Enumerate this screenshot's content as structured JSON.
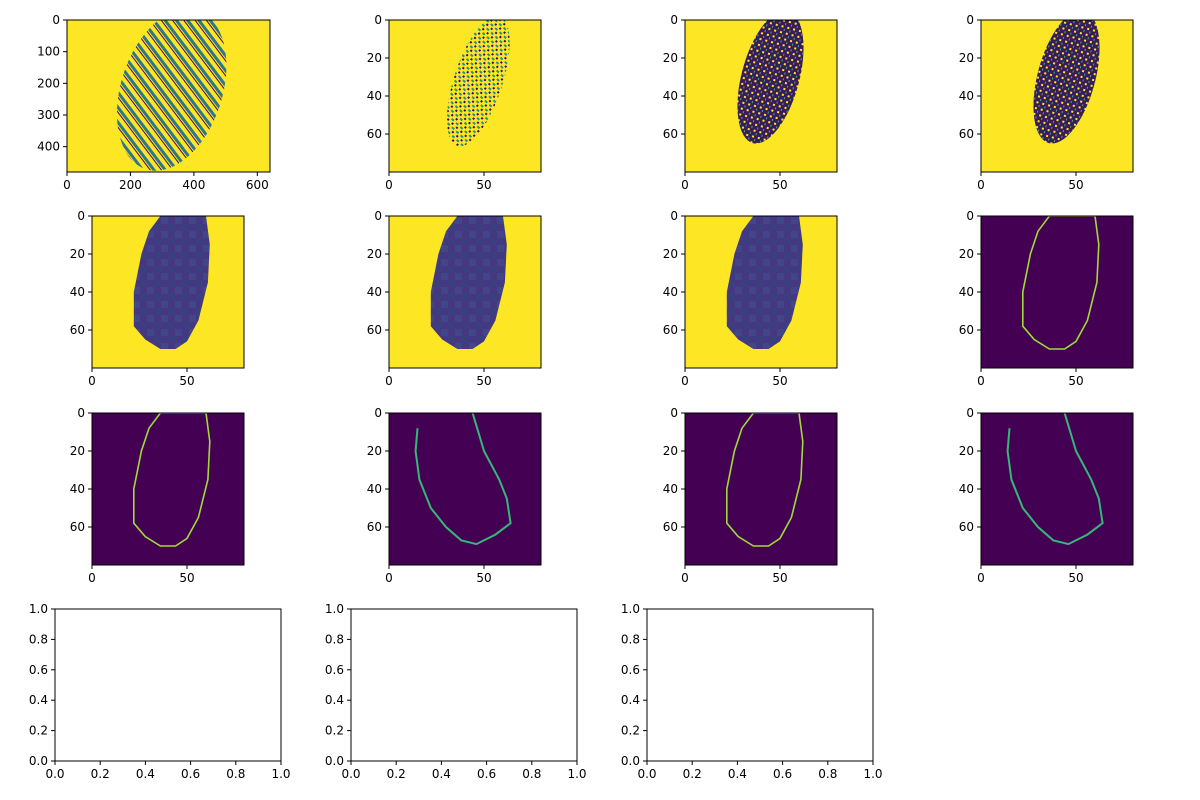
{
  "colors": {
    "yellow": "#fde725",
    "purple": "#440154",
    "dark_purple": "#3b1c5a",
    "blob_blue": "#3e4a89",
    "blob_blue_dark": "#3b3f80",
    "green_edge": "#a0da39",
    "teal_edge": "#35b779",
    "figure_bg": "#ffffff"
  },
  "chart_data": [
    {
      "type": "heatmap",
      "panel": "fingerprint-raw",
      "image": "grayscale fingerprint (viridis): dark ridges on yellow background",
      "xlim": [
        0,
        640
      ],
      "ylim": [
        480,
        0
      ],
      "xticks": [
        "0",
        "200",
        "400",
        "600"
      ],
      "yticks": [
        "0",
        "100",
        "200",
        "300",
        "400"
      ]
    },
    {
      "type": "heatmap",
      "panel": "fingerprint-downsampled",
      "image": "downsampled fingerprint, sparse dark dots on yellow",
      "xlim": [
        0,
        80
      ],
      "ylim": [
        80,
        0
      ],
      "xticks": [
        "0",
        "50"
      ],
      "yticks": [
        "0",
        "20",
        "40",
        "60"
      ]
    },
    {
      "type": "heatmap",
      "panel": "fingerprint-dark-mask",
      "image": "dense dark purple fingerprint region on yellow",
      "xlim": [
        0,
        80
      ],
      "ylim": [
        80,
        0
      ],
      "xticks": [
        "0",
        "50"
      ],
      "yticks": [
        "0",
        "20",
        "40",
        "60"
      ]
    },
    {
      "type": "heatmap",
      "panel": "fingerprint-dark-mask-2",
      "image": "dense dark purple fingerprint region on yellow",
      "xlim": [
        0,
        80
      ],
      "ylim": [
        80,
        0
      ],
      "xticks": [
        "0",
        "50"
      ],
      "yticks": [
        "0",
        "20",
        "40",
        "60"
      ]
    },
    {
      "type": "heatmap",
      "panel": "blob-smoothed-1",
      "image": "blocky purple oval blob on yellow",
      "xlim": [
        0,
        80
      ],
      "ylim": [
        80,
        0
      ],
      "xticks": [
        "0",
        "50"
      ],
      "yticks": [
        "0",
        "20",
        "40",
        "60"
      ]
    },
    {
      "type": "heatmap",
      "panel": "blob-smoothed-2",
      "image": "blocky purple oval blob on yellow",
      "xlim": [
        0,
        80
      ],
      "ylim": [
        80,
        0
      ],
      "xticks": [
        "0",
        "50"
      ],
      "yticks": [
        "0",
        "20",
        "40",
        "60"
      ]
    },
    {
      "type": "heatmap",
      "panel": "blob-smoothed-3",
      "image": "blocky purple oval blob on yellow",
      "xlim": [
        0,
        80
      ],
      "ylim": [
        80,
        0
      ],
      "xticks": [
        "0",
        "50"
      ],
      "yticks": [
        "0",
        "20",
        "40",
        "60"
      ]
    },
    {
      "type": "heatmap",
      "panel": "blob-contour-1",
      "image": "green oval contour on dark purple",
      "xlim": [
        0,
        80
      ],
      "ylim": [
        80,
        0
      ],
      "xticks": [
        "0",
        "50"
      ],
      "yticks": [
        "0",
        "20",
        "40",
        "60"
      ]
    },
    {
      "type": "heatmap",
      "panel": "blob-contour-2",
      "image": "green oval contour on dark purple",
      "xlim": [
        0,
        80
      ],
      "ylim": [
        80,
        0
      ],
      "xticks": [
        "0",
        "50"
      ],
      "yticks": [
        "0",
        "20",
        "40",
        "60"
      ]
    },
    {
      "type": "heatmap",
      "panel": "blob-contour-rotated-1",
      "image": "teal rotated oval contour on dark purple",
      "xlim": [
        0,
        80
      ],
      "ylim": [
        80,
        0
      ],
      "xticks": [
        "0",
        "50"
      ],
      "yticks": [
        "0",
        "20",
        "40",
        "60"
      ]
    },
    {
      "type": "heatmap",
      "panel": "blob-contour-3",
      "image": "green oval contour on dark purple",
      "xlim": [
        0,
        80
      ],
      "ylim": [
        80,
        0
      ],
      "xticks": [
        "0",
        "50"
      ],
      "yticks": [
        "0",
        "20",
        "40",
        "60"
      ]
    },
    {
      "type": "heatmap",
      "panel": "blob-contour-rotated-2",
      "image": "teal rotated oval contour on dark purple",
      "xlim": [
        0,
        80
      ],
      "ylim": [
        80,
        0
      ],
      "xticks": [
        "0",
        "50"
      ],
      "yticks": [
        "0",
        "20",
        "40",
        "60"
      ]
    },
    {
      "type": "empty",
      "panel": "empty-axes-1",
      "xlim": [
        0,
        1
      ],
      "ylim": [
        0,
        1
      ],
      "xticks": [
        "0.0",
        "0.2",
        "0.4",
        "0.6",
        "0.8",
        "1.0"
      ],
      "yticks": [
        "0.0",
        "0.2",
        "0.4",
        "0.6",
        "0.8",
        "1.0"
      ]
    },
    {
      "type": "empty",
      "panel": "empty-axes-2",
      "xlim": [
        0,
        1
      ],
      "ylim": [
        0,
        1
      ],
      "xticks": [
        "0.0",
        "0.2",
        "0.4",
        "0.6",
        "0.8",
        "1.0"
      ],
      "yticks": [
        "0.0",
        "0.2",
        "0.4",
        "0.6",
        "0.8",
        "1.0"
      ]
    },
    {
      "type": "empty",
      "panel": "empty-axes-3",
      "xlim": [
        0,
        1
      ],
      "ylim": [
        0,
        1
      ],
      "xticks": [
        "0.0",
        "0.2",
        "0.4",
        "0.6",
        "0.8",
        "1.0"
      ],
      "yticks": [
        "0.0",
        "0.2",
        "0.4",
        "0.6",
        "0.8",
        "1.0"
      ]
    }
  ]
}
